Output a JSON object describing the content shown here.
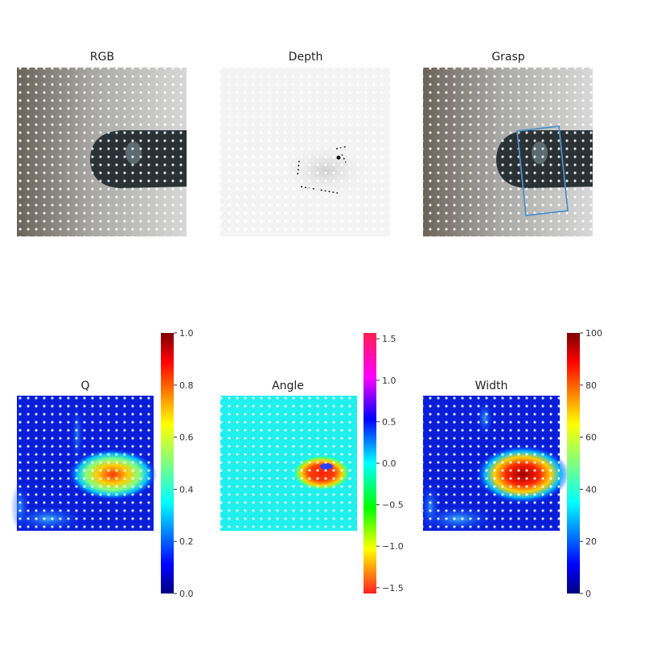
{
  "chart_data": [
    {
      "type": "heatmap",
      "title": "RGB",
      "description": "rgb-image"
    },
    {
      "type": "heatmap",
      "title": "Depth",
      "description": "depth-image"
    },
    {
      "type": "heatmap",
      "title": "Grasp",
      "description": "rgb-image-with-grasp-rectangle"
    },
    {
      "type": "heatmap",
      "title": "Q",
      "colormap": "jet",
      "colorbar": {
        "min": 0.0,
        "max": 1.0,
        "ticks": [
          "0.0",
          "0.2",
          "0.4",
          "0.6",
          "0.8",
          "1.0"
        ]
      }
    },
    {
      "type": "heatmap",
      "title": "Angle",
      "colormap": "hsv",
      "colorbar": {
        "min": -1.57,
        "max": 1.57,
        "ticks": [
          "−1.5",
          "−1.0",
          "−0.5",
          "0.0",
          "0.5",
          "1.0",
          "1.5"
        ]
      }
    },
    {
      "type": "heatmap",
      "title": "Width",
      "colormap": "jet",
      "colorbar": {
        "min": 0,
        "max": 100,
        "ticks": [
          "0",
          "20",
          "40",
          "60",
          "80",
          "100"
        ]
      }
    }
  ],
  "colors": {
    "grasp_rect": "#4a90c8",
    "background": "#ffffff"
  }
}
